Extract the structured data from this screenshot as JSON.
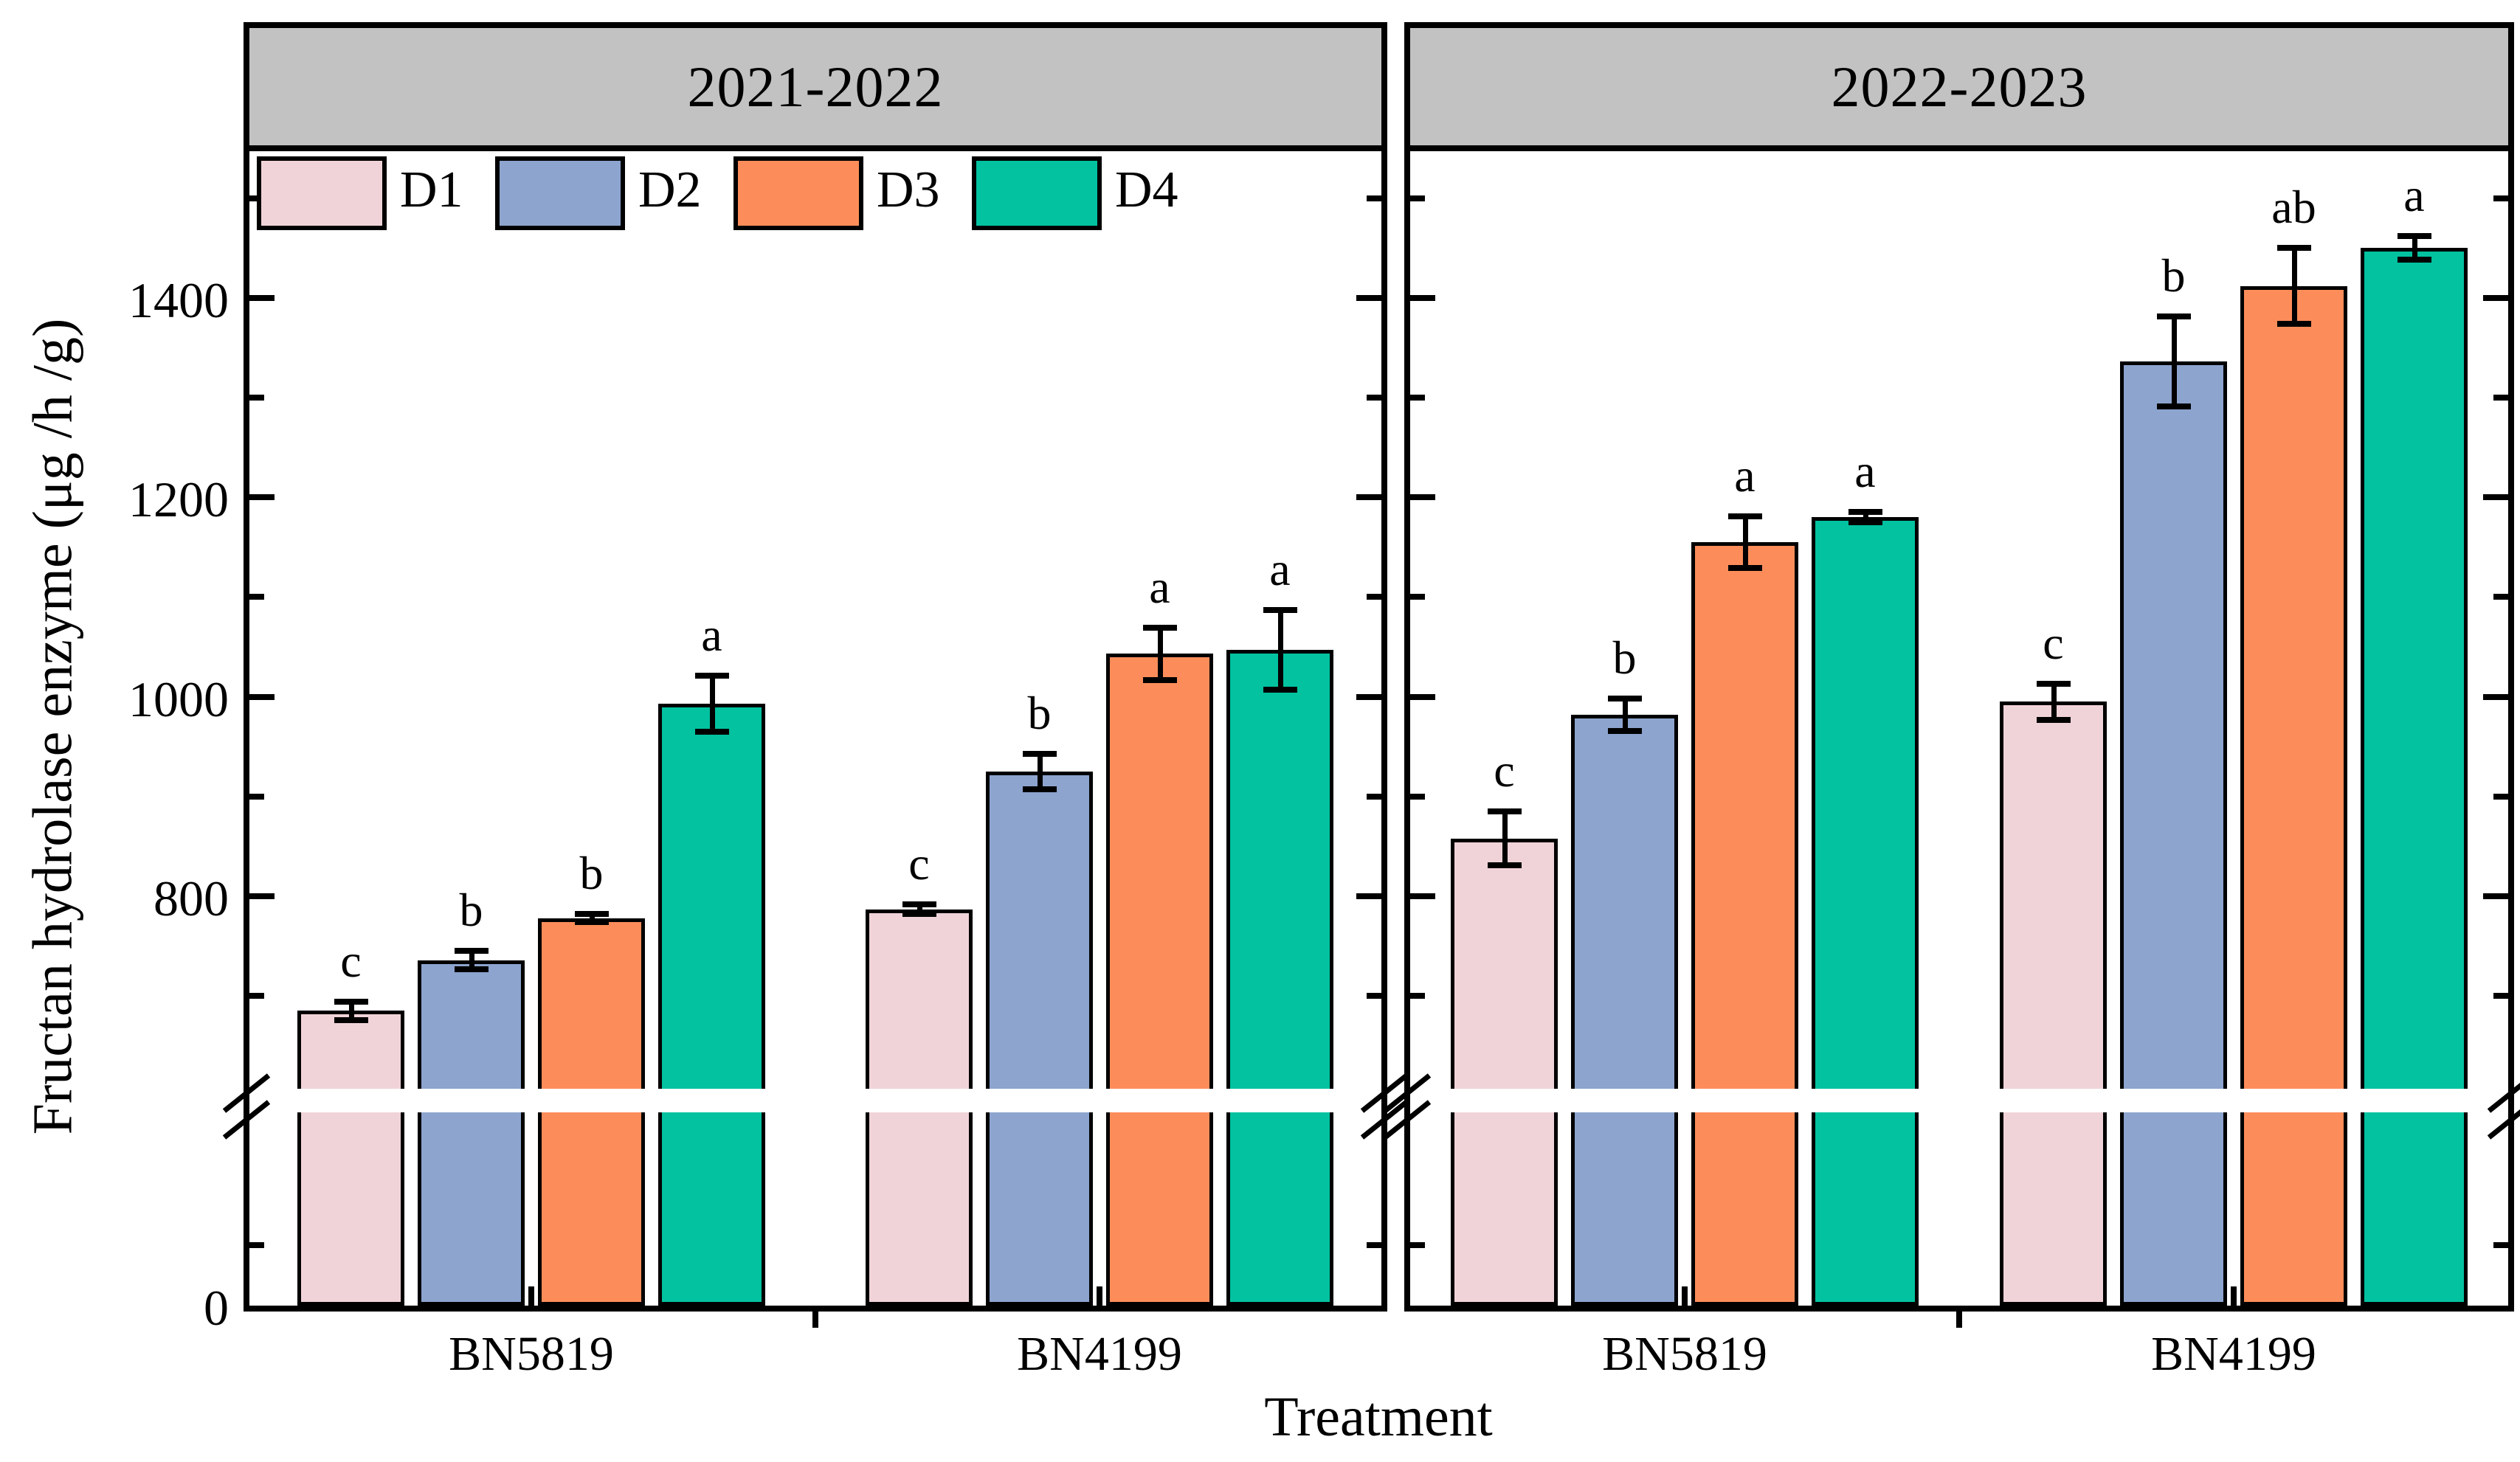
{
  "chart_data": {
    "type": "bar",
    "title": "",
    "xlabel": "Treatment",
    "ylabel": "Fructan hydrolase enzyme (μg /h /g)",
    "grid": false,
    "legend_position": "top-left inside plot, horizontal row",
    "y_axis": {
      "zero_label": "0",
      "major_tick_labels": [
        "800",
        "1000",
        "1200",
        "1400"
      ],
      "major_tick_values": [
        800,
        1000,
        1200,
        1400
      ],
      "minor_tick_values": [
        700,
        900,
        1100,
        1300,
        1500
      ],
      "axis_break": {
        "present": true,
        "below_value": 600,
        "style": "double slash marks + white band across bars"
      },
      "ylim": [
        0,
        1530
      ]
    },
    "legend": [
      "D1",
      "D2",
      "D3",
      "D4"
    ],
    "colors": {
      "D1": "#f0d3d8",
      "D2": "#8ca4ce",
      "D3": "#fc8d5a",
      "D4": "#02c2a0"
    },
    "header_fill": "#c2c2c2",
    "panels": [
      {
        "title": "2021-2022",
        "categories": [
          "BN5819",
          "BN4199"
        ],
        "series": [
          {
            "name": "D1",
            "values": [
              685,
              787
            ],
            "errors": [
              9,
              5
            ],
            "letters": [
              "c",
              "c"
            ]
          },
          {
            "name": "D2",
            "values": [
              736,
              925
            ],
            "errors": [
              9,
              18
            ],
            "letters": [
              "b",
              "b"
            ]
          },
          {
            "name": "D3",
            "values": [
              778,
              1043
            ],
            "errors": [
              4,
              26
            ],
            "letters": [
              "b",
              "a"
            ]
          },
          {
            "name": "D4",
            "values": [
              993,
              1047
            ],
            "errors": [
              28,
              40
            ],
            "letters": [
              "a",
              "a"
            ]
          }
        ]
      },
      {
        "title": "2022-2023",
        "categories": [
          "BN5819",
          "BN4199"
        ],
        "series": [
          {
            "name": "D1",
            "values": [
              858,
              995
            ],
            "errors": [
              27,
              18
            ],
            "letters": [
              "c",
              "c"
            ]
          },
          {
            "name": "D2",
            "values": [
              982,
              1336
            ],
            "errors": [
              16,
              45
            ],
            "letters": [
              "b",
              "b"
            ]
          },
          {
            "name": "D3",
            "values": [
              1155,
              1412
            ],
            "errors": [
              26,
              38
            ],
            "letters": [
              "a",
              "ab"
            ]
          },
          {
            "name": "D4",
            "values": [
              1180,
              1450
            ],
            "errors": [
              5,
              12
            ],
            "letters": [
              "a",
              "a"
            ]
          }
        ]
      }
    ]
  }
}
